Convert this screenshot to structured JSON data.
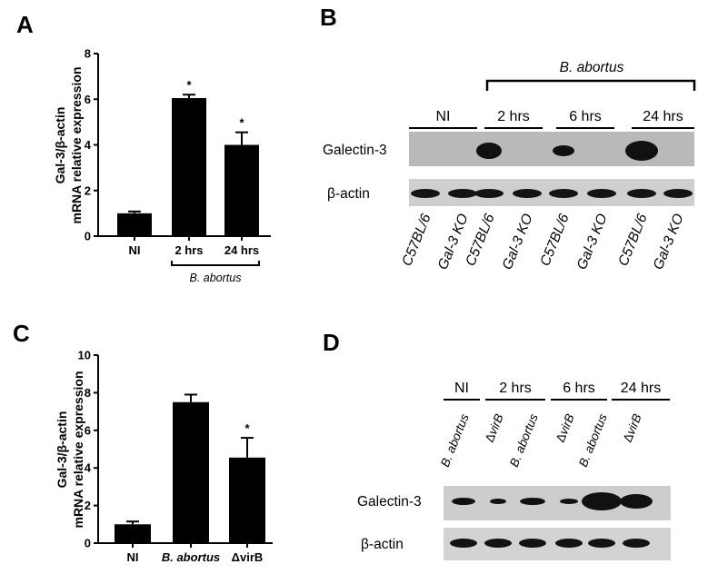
{
  "panels": {
    "a": "A",
    "b": "B",
    "c": "C",
    "d": "D"
  },
  "chart_data": [
    {
      "panel": "A",
      "type": "bar",
      "ylabel_line1": "Gal-3/β-actin",
      "ylabel_line2": "mRNA relative expression",
      "ylim": [
        0,
        8
      ],
      "yticks": [
        "0",
        "2",
        "4",
        "6",
        "8"
      ],
      "categories": [
        "NI",
        "2 hrs",
        "24 hrs"
      ],
      "values": [
        1.0,
        6.05,
        4.0
      ],
      "errors": [
        0.08,
        0.15,
        0.55
      ],
      "significance": [
        "",
        "*",
        "*"
      ],
      "group_bracket": {
        "label": "B. abortus",
        "from_category": 1,
        "to_category": 2
      },
      "bar_color": "#000000"
    },
    {
      "panel": "C",
      "type": "bar",
      "ylabel_line1": "Gal-3/β-actin",
      "ylabel_line2": "mRNA relative expression",
      "ylim": [
        0,
        10
      ],
      "yticks": [
        "0",
        "2",
        "4",
        "6",
        "8",
        "10"
      ],
      "categories": [
        "NI",
        "B. abortus",
        "ΔvirB"
      ],
      "category_italic": [
        false,
        true,
        false
      ],
      "values": [
        1.0,
        7.5,
        4.55
      ],
      "errors": [
        0.15,
        0.4,
        1.05
      ],
      "significance": [
        "",
        "",
        "*"
      ],
      "bar_color": "#000000"
    }
  ],
  "blot_b": {
    "header": "B. abortus",
    "groups": [
      "NI",
      "2 hrs",
      "6 hrs",
      "24 hrs"
    ],
    "rows": [
      "Galectin-3",
      "β-actin"
    ],
    "lanes": [
      "C57BL/6",
      "Gal-3 KO",
      "C57BL/6",
      "Gal-3 KO",
      "C57BL/6",
      "Gal-3 KO",
      "C57BL/6",
      "Gal-3 KO"
    ]
  },
  "blot_d": {
    "groups": [
      "NI",
      "2 hrs",
      "6 hrs",
      "24 hrs"
    ],
    "rows": [
      "Galectin-3",
      "β-actin"
    ],
    "lanes": [
      {
        "italic": "B. abortus",
        "plain": ""
      },
      {
        "italic": "virB",
        "plain": "Δ"
      },
      {
        "italic": "B. abortus",
        "plain": ""
      },
      {
        "italic": "virB",
        "plain": "Δ"
      },
      {
        "italic": "B. abortus",
        "plain": ""
      },
      {
        "italic": "virB",
        "plain": "Δ"
      }
    ]
  }
}
